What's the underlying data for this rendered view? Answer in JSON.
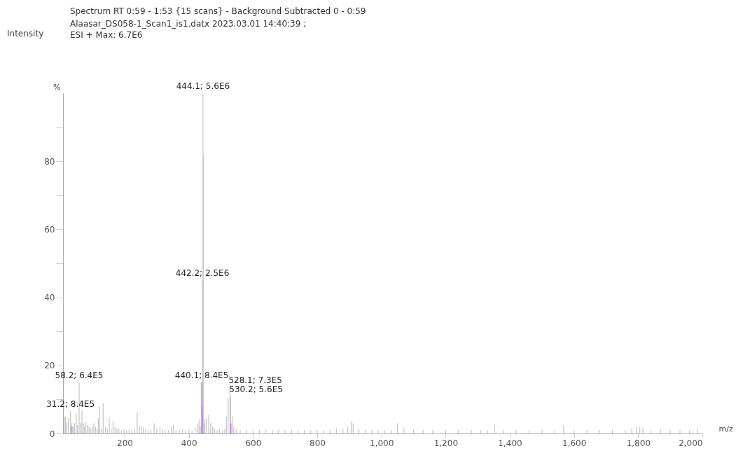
{
  "chart_data": {
    "type": "bar",
    "title": "Spectrum RT 0:59 - 1:53 {15 scans} - Background Subtracted 0 - 0:59",
    "subtitle": "Alaasar_DS058-1_Scan1_is1.datx 2023.03.01 14:40:39 ;\nESI + Max: 6.7E6",
    "xlabel": "m/z",
    "ylabel": "%",
    "series": [
      {
        "color": "#c8c8c8",
        "x": [
          12,
          16,
          20,
          25,
          31.2,
          34,
          40,
          44,
          49,
          53,
          58.2,
          62,
          67,
          71,
          75,
          79,
          84,
          89,
          94,
          99,
          104,
          109,
          114,
          118,
          122,
          128,
          133,
          140,
          146,
          152,
          158,
          164,
          170,
          176,
          182,
          190,
          198,
          206,
          214,
          222,
          230,
          239,
          246,
          252,
          258,
          266,
          274,
          282,
          292,
          300,
          310,
          318,
          326,
          336,
          346,
          352,
          360,
          370,
          380,
          390,
          400,
          410,
          420,
          428,
          432,
          436,
          442.2,
          444.1,
          445,
          447,
          450,
          455,
          462,
          468,
          474,
          480,
          488,
          496,
          505,
          512,
          517,
          522,
          528.1,
          530.2,
          535,
          540,
          548,
          560,
          580,
          600,
          620,
          640,
          660,
          680,
          700,
          720,
          740,
          760,
          780,
          800,
          820,
          840,
          860,
          880,
          895,
          906,
          912,
          930,
          950,
          970,
          990,
          1010,
          1030,
          1050,
          1070,
          1100,
          1130,
          1160,
          1200,
          1240,
          1280,
          1310,
          1330,
          1352,
          1380,
          1420,
          1460,
          1500,
          1540,
          1568,
          1600,
          1640,
          1680,
          1720,
          1760,
          1780,
          1795,
          1805,
          1815,
          1840,
          1870,
          1900,
          1930,
          1960,
          1985
        ],
        "values": [
          5,
          5,
          3,
          4.5,
          6.5,
          3,
          2,
          3,
          6,
          2.5,
          15,
          3,
          7,
          3,
          2,
          3.5,
          2.5,
          2,
          1.5,
          2,
          3,
          2,
          1.5,
          4.5,
          8,
          1.5,
          9,
          2,
          1.5,
          4.5,
          1.5,
          3.5,
          2,
          1.5,
          1.5,
          1,
          1.2,
          1,
          1.2,
          1,
          1.5,
          6.2,
          2.5,
          2,
          1.8,
          1.5,
          1,
          1.2,
          3,
          1.5,
          2,
          1.2,
          1,
          1,
          1.8,
          2.5,
          1,
          1,
          1.2,
          1,
          1.2,
          1,
          1.5,
          3,
          4,
          2,
          45,
          100,
          82,
          4.5,
          3,
          4.5,
          5.5,
          3,
          2,
          1.5,
          1,
          1.2,
          1,
          1.2,
          5,
          10.5,
          13.5,
          11,
          5,
          2,
          1.2,
          1,
          1,
          1,
          1,
          1.2,
          1,
          1,
          1,
          1,
          1,
          1,
          1,
          1,
          1,
          1,
          1.5,
          1.5,
          2,
          3.5,
          3,
          1.2,
          1,
          1,
          1,
          1,
          1,
          3,
          1.5,
          1.2,
          1,
          1,
          1,
          1,
          1,
          1,
          1,
          2.5,
          1,
          1,
          1,
          1,
          1,
          2.5,
          1,
          1,
          1,
          1,
          1,
          1.5,
          1.8,
          2,
          1.8,
          1,
          1.2,
          1,
          1,
          1,
          1.5
        ]
      },
      {
        "color": "#b070f0",
        "x": [
          36,
          440.1,
          441.5,
          531
        ],
        "values": [
          2,
          15,
          8,
          3
        ]
      }
    ],
    "xlim": [
      8,
      2000
    ],
    "xticks": [
      200,
      400,
      600,
      800,
      {
        "value": 1000,
        "label": "1,000"
      },
      {
        "value": 1200,
        "label": "1,200"
      },
      {
        "value": 1400,
        "label": "1,400"
      },
      {
        "value": 1600,
        "label": "1,600"
      },
      {
        "value": 1800,
        "label": "1,800"
      },
      {
        "value": 2000,
        "label": "2,000"
      }
    ],
    "ylim": [
      0,
      100
    ],
    "yticks": [
      0,
      20,
      40,
      60,
      80,
      {
        "value": 10,
        "label": null
      },
      {
        "value": 30,
        "label": null
      },
      {
        "value": 50,
        "label": null
      },
      {
        "value": 70,
        "label": null
      },
      {
        "value": 90,
        "label": null
      }
    ],
    "annotations": [
      "Intensity",
      {
        "text": "444.1; 5.6E6",
        "x": 444.1,
        "y": 100
      },
      {
        "text": "442.2; 2.5E6",
        "x": 442.2,
        "y": 45
      },
      {
        "text": "440.1; 8.4E5",
        "x": 440.1,
        "y": 15
      },
      {
        "text": "528.1; 7.3E5",
        "x": 528.1,
        "y": 13.5
      },
      {
        "text": "530.2; 5.6E5",
        "x": 530.2,
        "y": 11
      },
      {
        "text": "58.2; 6.4E5",
        "x": 58.2,
        "y": 15
      },
      {
        "text": "31.2; 8.4E5",
        "x": 31.2,
        "y": 6.5
      }
    ]
  }
}
